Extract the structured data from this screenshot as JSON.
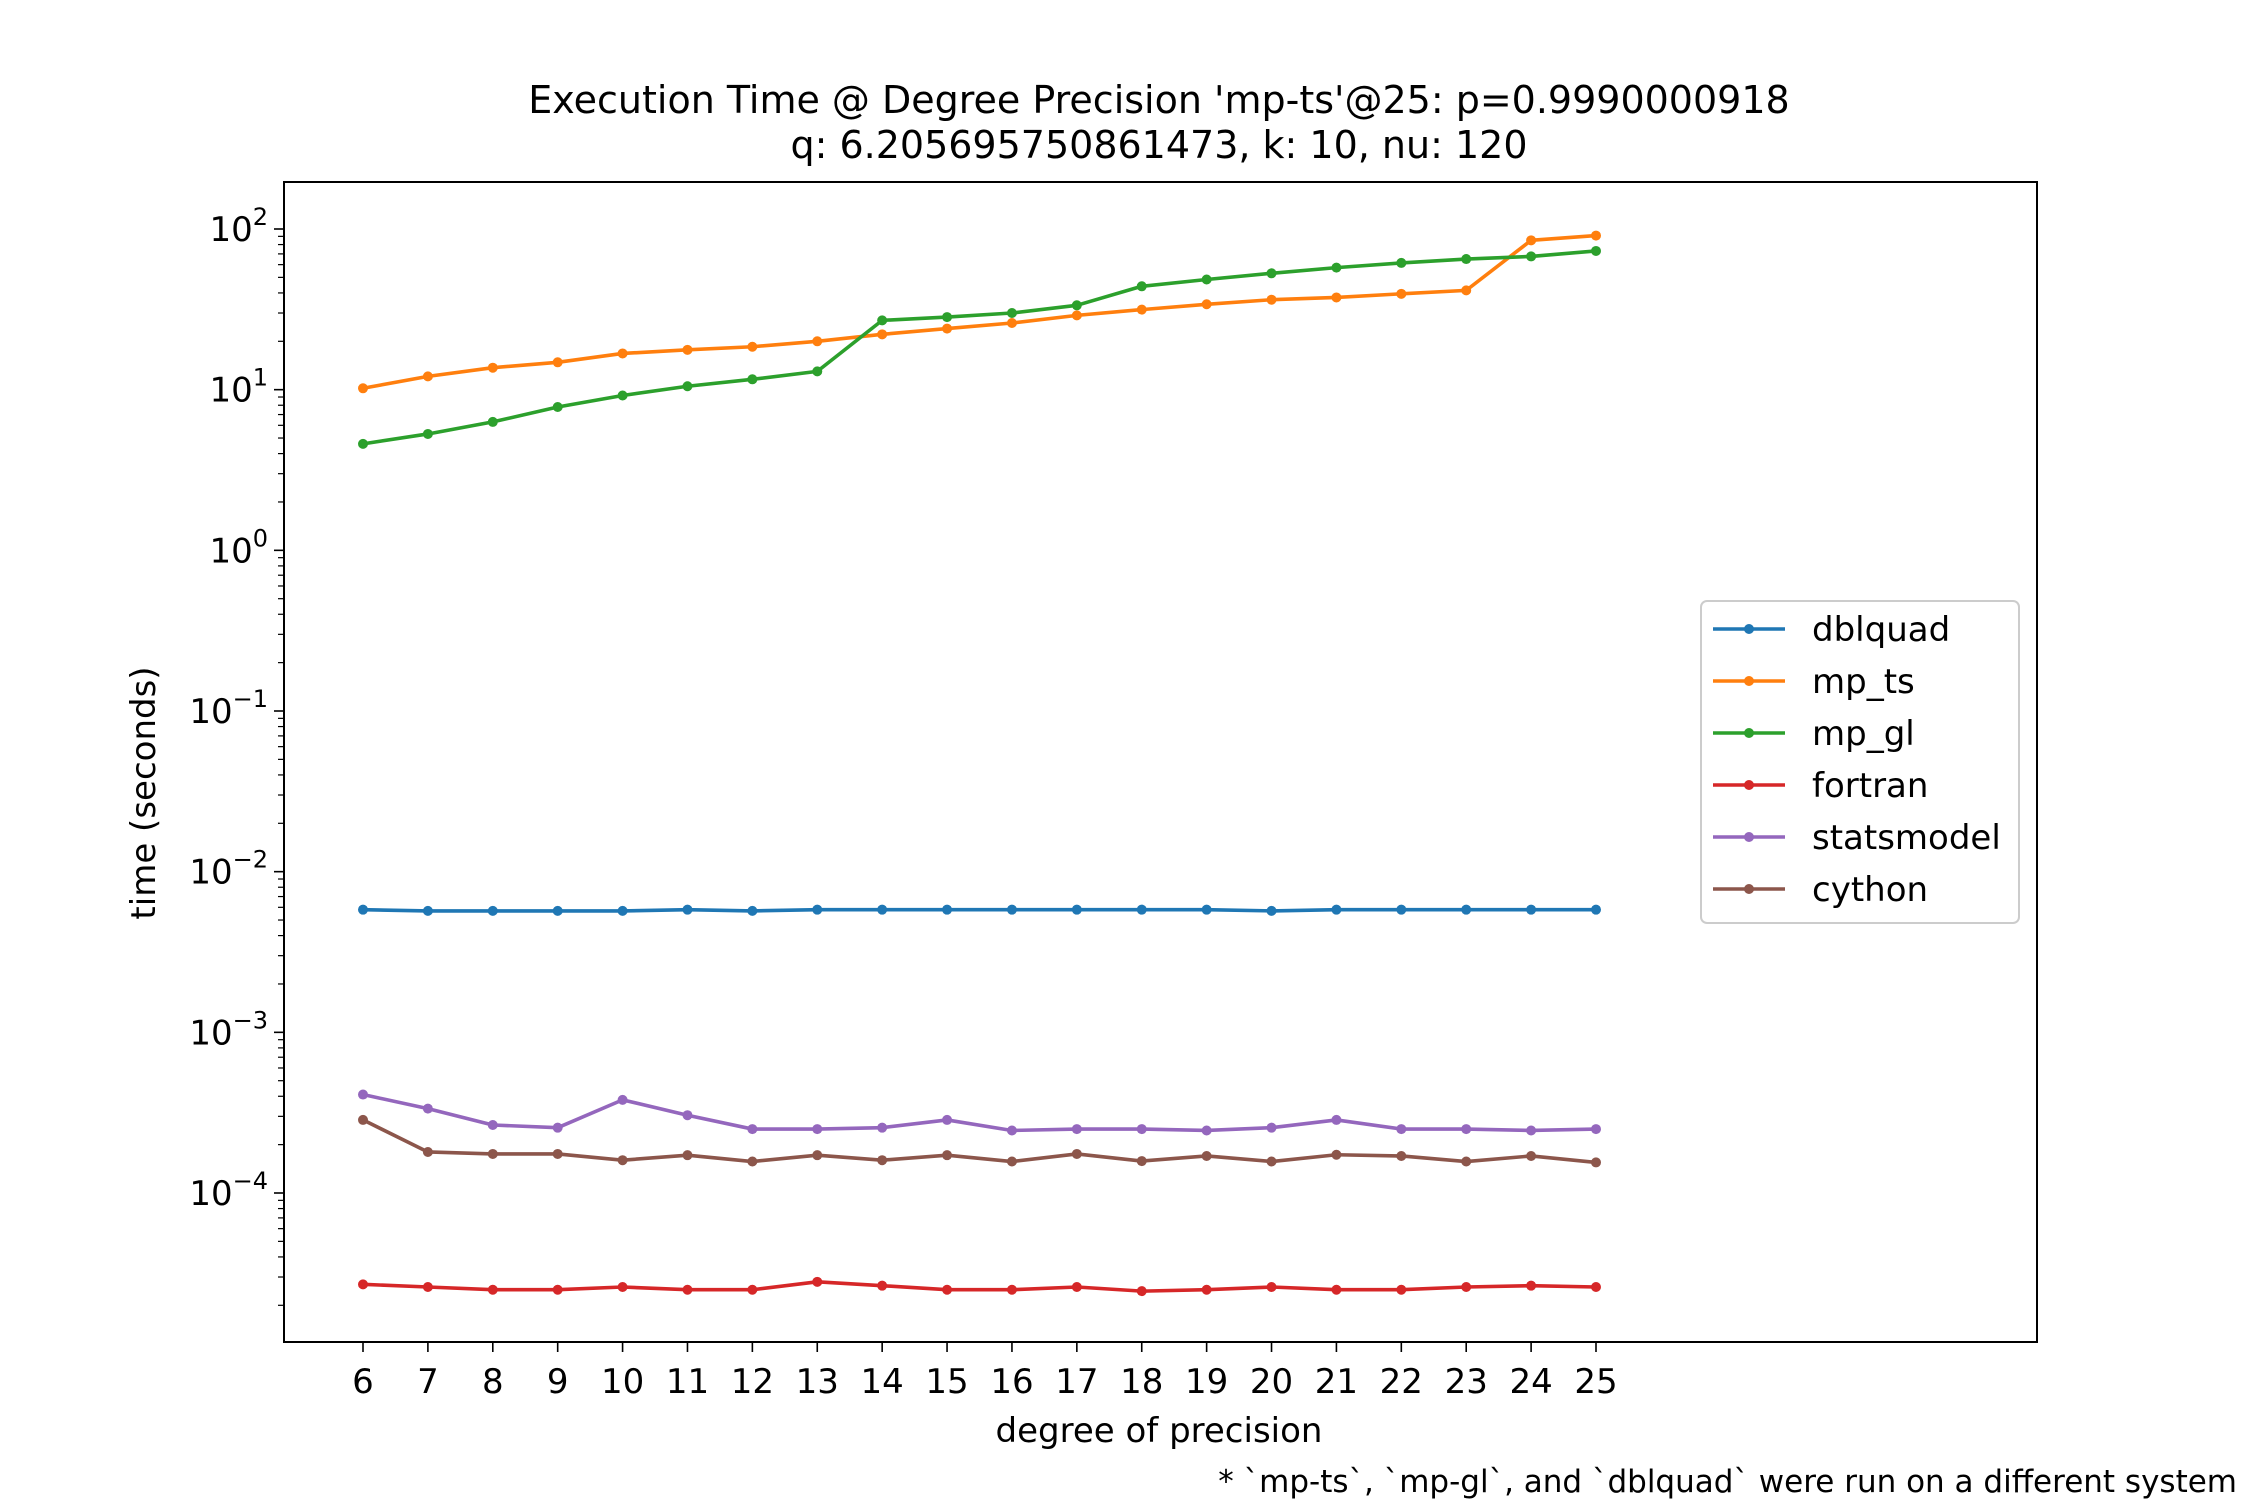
{
  "chart_data": {
    "type": "line",
    "title": "Execution Time @ Degree Precision 'mp-ts'@25: p=0.9990000918",
    "subtitle": "q: 6.205695750861473, k: 10, nu: 120",
    "xlabel": "degree of precision",
    "ylabel": "time (seconds)",
    "yscale": "log",
    "ylim": [
      1e-05,
      200
    ],
    "grid": false,
    "legend_position": "center-right",
    "note": "* `mp-ts`, `mp-gl`, and `dblquad` were run on a different system",
    "x": [
      6,
      7,
      8,
      9,
      10,
      11,
      12,
      13,
      14,
      15,
      16,
      17,
      18,
      19,
      20,
      21,
      22,
      23,
      24,
      25
    ],
    "y_ticks": [
      {
        "base": "10",
        "exp": "2",
        "value": 100
      },
      {
        "base": "10",
        "exp": "1",
        "value": 10
      },
      {
        "base": "10",
        "exp": "0",
        "value": 1
      },
      {
        "base": "10",
        "exp": "−1",
        "value": 0.1
      },
      {
        "base": "10",
        "exp": "−2",
        "value": 0.01
      },
      {
        "base": "10",
        "exp": "−3",
        "value": 0.001
      },
      {
        "base": "10",
        "exp": "−4",
        "value": 0.0001
      }
    ],
    "series": [
      {
        "name": "dblquad",
        "color": "#1f77b4",
        "values": [
          0.0058,
          0.0057,
          0.0057,
          0.0057,
          0.0057,
          0.0058,
          0.0057,
          0.0058,
          0.0058,
          0.0058,
          0.0058,
          0.0058,
          0.0058,
          0.0058,
          0.0057,
          0.0058,
          0.0058,
          0.0058,
          0.0058,
          0.0058
        ]
      },
      {
        "name": "mp_ts",
        "color": "#ff7f0e",
        "values": [
          10.2,
          12.1,
          13.7,
          14.8,
          16.8,
          17.7,
          18.5,
          20.0,
          22.1,
          24.0,
          26.0,
          29.0,
          31.5,
          34.0,
          36.3,
          37.5,
          39.5,
          41.5,
          85.0,
          91.0
        ]
      },
      {
        "name": "mp_gl",
        "color": "#2ca02c",
        "values": [
          4.6,
          5.3,
          6.3,
          7.8,
          9.2,
          10.5,
          11.6,
          13.0,
          27.0,
          28.3,
          30.0,
          33.5,
          44.0,
          48.5,
          53.0,
          57.5,
          61.5,
          65.0,
          67.5,
          73.0
        ]
      },
      {
        "name": "fortran",
        "color": "#d62728",
        "values": [
          2.7e-05,
          2.6e-05,
          2.5e-05,
          2.5e-05,
          2.6e-05,
          2.5e-05,
          2.5e-05,
          2.8e-05,
          2.65e-05,
          2.5e-05,
          2.5e-05,
          2.6e-05,
          2.45e-05,
          2.5e-05,
          2.6e-05,
          2.5e-05,
          2.5e-05,
          2.6e-05,
          2.65e-05,
          2.6e-05
        ]
      },
      {
        "name": "statsmodel",
        "color": "#9467bd",
        "values": [
          0.00041,
          0.000335,
          0.000265,
          0.000255,
          0.00038,
          0.000305,
          0.00025,
          0.00025,
          0.000255,
          0.000285,
          0.000245,
          0.00025,
          0.00025,
          0.000245,
          0.000255,
          0.000285,
          0.00025,
          0.00025,
          0.000245,
          0.00025
        ]
      },
      {
        "name": "cython",
        "color": "#8c564b",
        "values": [
          0.000285,
          0.00018,
          0.000175,
          0.000175,
          0.00016,
          0.000172,
          0.000157,
          0.000172,
          0.00016,
          0.000172,
          0.000157,
          0.000175,
          0.000158,
          0.00017,
          0.000157,
          0.000173,
          0.00017,
          0.000157,
          0.00017,
          0.000155
        ]
      }
    ]
  }
}
